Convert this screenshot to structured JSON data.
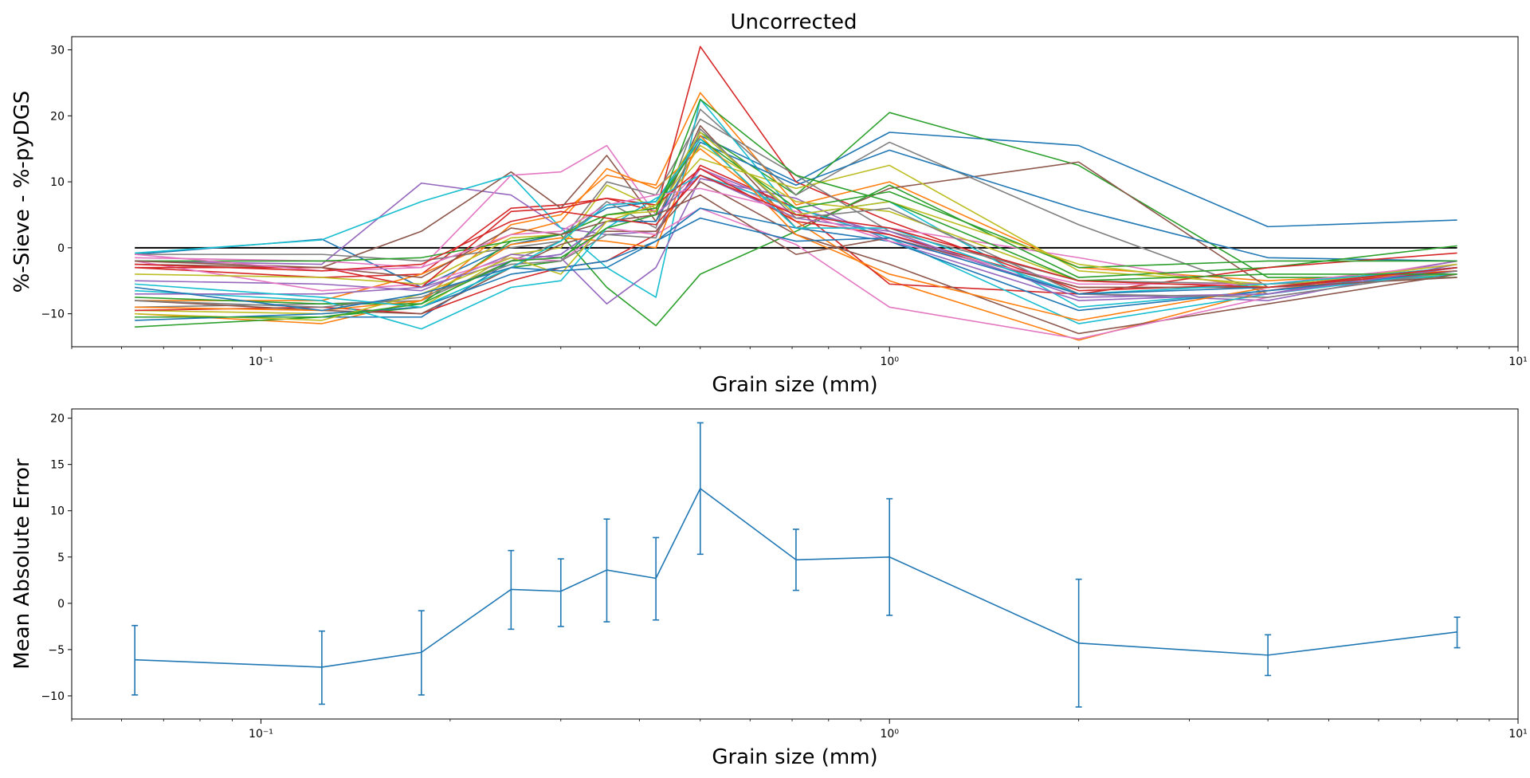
{
  "chart_data": [
    {
      "type": "line",
      "title": "Uncorrected",
      "xlabel": "Grain size (mm)",
      "ylabel": "%-Sieve - %-pyDGS",
      "xscale": "log",
      "xlim": [
        0.05,
        10
      ],
      "ylim": [
        -15,
        32
      ],
      "xticks": [
        0.1,
        1,
        10
      ],
      "xtick_labels": [
        "10⁻¹",
        "10⁰",
        "10¹"
      ],
      "yticks": [
        -10,
        0,
        10,
        20,
        30
      ],
      "ytick_labels": [
        "−10",
        "0",
        "10",
        "20",
        "30"
      ],
      "grid": false,
      "x": [
        0.063,
        0.125,
        0.18,
        0.25,
        0.3,
        0.355,
        0.425,
        0.5,
        0.71,
        1.0,
        2.0,
        4.0,
        8.0
      ],
      "reference_line": {
        "y": 0,
        "color": "#000000"
      },
      "series": [
        {
          "color": "#1f77b4",
          "values": [
            -1.0,
            1.3,
            -6.0,
            0.5,
            2.0,
            6.0,
            7.0,
            17.0,
            10.0,
            17.5,
            15.5,
            3.2,
            4.2
          ]
        },
        {
          "color": "#ff7f0e",
          "values": [
            -10.0,
            -11.5,
            -8.0,
            3.5,
            5.0,
            11.0,
            9.5,
            23.5,
            6.5,
            10.0,
            -3.0,
            -5.0,
            -3.5
          ]
        },
        {
          "color": "#2ca02c",
          "values": [
            -12.0,
            -10.5,
            -9.0,
            -3.0,
            -2.0,
            5.0,
            6.0,
            17.5,
            8.0,
            20.5,
            12.5,
            -4.5,
            -4.5
          ]
        },
        {
          "color": "#d62728",
          "values": [
            -3.0,
            -4.5,
            -4.0,
            6.0,
            6.5,
            7.5,
            5.5,
            30.5,
            10.0,
            4.0,
            -6.5,
            -5.5,
            -3.0
          ]
        },
        {
          "color": "#9467bd",
          "values": [
            -2.0,
            -2.5,
            9.8,
            8.0,
            3.0,
            2.0,
            2.5,
            12.0,
            6.0,
            2.0,
            -7.0,
            -8.0,
            -2.5
          ]
        },
        {
          "color": "#8c564b",
          "values": [
            -2.5,
            -3.0,
            2.5,
            11.5,
            6.0,
            14.0,
            4.0,
            18.5,
            3.0,
            9.0,
            13.0,
            -6.0,
            -3.5
          ]
        },
        {
          "color": "#e377c2",
          "values": [
            -1.5,
            -2.0,
            -3.0,
            11.0,
            11.5,
            15.5,
            5.0,
            12.0,
            5.0,
            3.0,
            -1.5,
            -6.5,
            -2.0
          ]
        },
        {
          "color": "#7f7f7f",
          "values": [
            -9.0,
            -8.5,
            -8.0,
            -2.0,
            1.0,
            7.0,
            3.0,
            21.0,
            8.0,
            16.0,
            3.5,
            -7.0,
            -3.0
          ]
        },
        {
          "color": "#bcbd22",
          "values": [
            -9.5,
            -10.0,
            -9.0,
            -1.0,
            0.0,
            9.5,
            6.0,
            13.5,
            9.0,
            12.5,
            -3.5,
            -5.5,
            -4.0
          ]
        },
        {
          "color": "#17becf",
          "values": [
            -0.8,
            1.2,
            7.0,
            11.0,
            3.0,
            -3.0,
            -7.5,
            22.5,
            5.0,
            7.0,
            -9.0,
            -6.5,
            -4.0
          ]
        },
        {
          "color": "#1f77b4",
          "values": [
            -10.5,
            -10.5,
            -10.5,
            -2.0,
            -1.0,
            4.0,
            4.0,
            16.0,
            9.5,
            14.8,
            5.8,
            -1.5,
            -2.0
          ]
        },
        {
          "color": "#ff7f0e",
          "values": [
            -8.0,
            -8.0,
            -4.0,
            2.0,
            4.0,
            12.0,
            9.0,
            15.0,
            4.0,
            -5.0,
            -14.0,
            -6.5,
            -3.0
          ]
        },
        {
          "color": "#2ca02c",
          "values": [
            -7.5,
            -8.5,
            -8.5,
            1.0,
            2.0,
            -6.0,
            -11.8,
            -4.0,
            2.5,
            9.5,
            -4.5,
            -3.0,
            0.3
          ]
        },
        {
          "color": "#d62728",
          "values": [
            -9.5,
            -9.0,
            -10.0,
            -5.0,
            -3.0,
            -2.0,
            2.0,
            12.5,
            6.0,
            -5.5,
            -7.0,
            -3.0,
            -0.8
          ]
        },
        {
          "color": "#9467bd",
          "values": [
            -5.0,
            -5.5,
            -6.5,
            -1.0,
            -1.5,
            -8.5,
            -3.0,
            10.5,
            7.5,
            1.0,
            -8.0,
            -7.0,
            -2.0
          ]
        },
        {
          "color": "#8c564b",
          "values": [
            -8.0,
            -9.5,
            -10.0,
            -3.0,
            0.5,
            2.5,
            2.5,
            10.0,
            2.0,
            -2.5,
            -13.0,
            -8.5,
            -4.0
          ]
        },
        {
          "color": "#e377c2",
          "values": [
            -2.0,
            -6.5,
            -5.5,
            -1.5,
            -2.0,
            3.0,
            2.0,
            6.0,
            0.5,
            -9.0,
            -13.8,
            -7.5,
            -3.5
          ]
        },
        {
          "color": "#7f7f7f",
          "values": [
            -1.0,
            -1.0,
            -2.0,
            0.0,
            1.0,
            10.0,
            8.0,
            19.5,
            11.0,
            2.5,
            -5.0,
            -5.5,
            -4.5
          ]
        },
        {
          "color": "#bcbd22",
          "values": [
            -4.0,
            -4.5,
            -5.5,
            1.5,
            2.0,
            5.0,
            5.5,
            15.5,
            7.0,
            5.5,
            -5.0,
            -6.0,
            -3.0
          ]
        },
        {
          "color": "#17becf",
          "values": [
            -6.5,
            -8.0,
            -12.3,
            -6.0,
            -5.0,
            3.0,
            7.5,
            11.0,
            6.0,
            1.5,
            -11.5,
            -7.0,
            -3.5
          ]
        },
        {
          "color": "#1f77b4",
          "values": [
            -11.0,
            -10.0,
            -9.0,
            -4.0,
            -3.0,
            -2.0,
            1.0,
            6.0,
            3.0,
            1.0,
            -9.5,
            -6.5,
            -3.5
          ]
        },
        {
          "color": "#ff7f0e",
          "values": [
            -9.0,
            -9.5,
            -8.0,
            0.5,
            1.5,
            1.0,
            0.0,
            17.0,
            2.0,
            -4.0,
            -11.0,
            -6.0,
            -3.0
          ]
        },
        {
          "color": "#2ca02c",
          "values": [
            -2.0,
            -2.0,
            -1.5,
            1.0,
            2.0,
            5.0,
            6.0,
            16.5,
            6.0,
            8.5,
            -3.0,
            -2.0,
            -2.0
          ]
        },
        {
          "color": "#d62728",
          "values": [
            -3.0,
            -3.0,
            -6.0,
            5.5,
            6.0,
            7.5,
            6.5,
            12.0,
            4.0,
            2.0,
            -6.0,
            -6.0,
            -3.5
          ]
        },
        {
          "color": "#9467bd",
          "values": [
            -7.0,
            -7.0,
            -6.0,
            -2.0,
            -1.0,
            4.0,
            5.0,
            11.0,
            4.5,
            2.5,
            -7.5,
            -7.0,
            -3.0
          ]
        },
        {
          "color": "#8c564b",
          "values": [
            -2.0,
            -3.0,
            -4.5,
            3.0,
            2.0,
            4.0,
            5.0,
            8.0,
            -1.0,
            1.5,
            -6.0,
            -6.0,
            -4.5
          ]
        },
        {
          "color": "#e377c2",
          "values": [
            -1.0,
            -3.5,
            -3.0,
            2.0,
            2.5,
            6.5,
            8.0,
            9.0,
            5.5,
            1.0,
            -5.5,
            -5.5,
            -2.5
          ]
        },
        {
          "color": "#7f7f7f",
          "values": [
            -8.0,
            -9.0,
            -7.5,
            -2.5,
            -2.0,
            2.0,
            1.5,
            18.0,
            4.5,
            6.0,
            -7.0,
            -7.5,
            -3.5
          ]
        },
        {
          "color": "#bcbd22",
          "values": [
            -10.0,
            -11.0,
            -7.0,
            -1.5,
            -4.0,
            4.0,
            6.5,
            17.5,
            5.0,
            7.0,
            -2.5,
            -6.0,
            -2.5
          ]
        },
        {
          "color": "#17becf",
          "values": [
            -5.5,
            -7.5,
            -9.0,
            -3.0,
            1.0,
            6.5,
            7.0,
            16.5,
            3.0,
            3.0,
            -7.0,
            -5.5,
            -3.0
          ]
        },
        {
          "color": "#1f77b4",
          "values": [
            -6.0,
            -9.5,
            -7.0,
            -3.0,
            -3.5,
            -3.0,
            1.0,
            4.5,
            1.0,
            1.5,
            -7.0,
            -6.0,
            -3.0
          ]
        },
        {
          "color": "#2ca02c",
          "values": [
            -10.5,
            -10.5,
            -8.5,
            -2.0,
            -1.5,
            3.0,
            5.0,
            22.5,
            11.0,
            7.0,
            -5.0,
            -4.0,
            -4.0
          ]
        },
        {
          "color": "#d62728",
          "values": [
            -2.5,
            -3.5,
            -2.5,
            4.0,
            5.5,
            4.5,
            3.5,
            11.0,
            5.0,
            3.0,
            -5.0,
            -6.0,
            -3.0
          ]
        }
      ]
    },
    {
      "type": "line",
      "title": "",
      "xlabel": "Grain size (mm)",
      "ylabel": "Mean Absolute Error",
      "xscale": "log",
      "xlim": [
        0.05,
        10
      ],
      "ylim": [
        -12.5,
        21
      ],
      "xticks": [
        0.1,
        1,
        10
      ],
      "xtick_labels": [
        "10⁻¹",
        "10⁰",
        "10¹"
      ],
      "yticks": [
        -10,
        -5,
        0,
        5,
        10,
        15,
        20
      ],
      "ytick_labels": [
        "−10",
        "−5",
        "0",
        "5",
        "10",
        "15",
        "20"
      ],
      "grid": false,
      "x": [
        0.063,
        0.125,
        0.18,
        0.25,
        0.3,
        0.355,
        0.425,
        0.5,
        0.71,
        1.0,
        2.0,
        4.0,
        8.0
      ],
      "series": [
        {
          "color": "#1f77b4",
          "values": [
            -6.1,
            -6.9,
            -5.3,
            1.5,
            1.3,
            3.6,
            2.7,
            12.4,
            4.7,
            5.0,
            -4.3,
            -5.6,
            -3.1
          ],
          "err_low": [
            -9.9,
            -10.9,
            -9.9,
            -2.8,
            -2.5,
            -2.0,
            -1.8,
            5.3,
            1.4,
            -1.3,
            -11.2,
            -7.8,
            -4.8
          ],
          "err_high": [
            -2.4,
            -3.0,
            -0.8,
            5.7,
            4.8,
            9.1,
            7.1,
            19.5,
            8.0,
            11.3,
            2.6,
            -3.4,
            -1.5
          ]
        }
      ]
    }
  ]
}
